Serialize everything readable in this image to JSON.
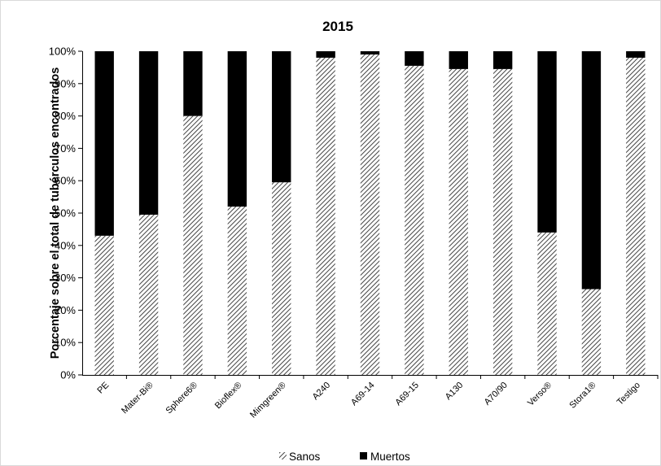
{
  "chart_data": {
    "type": "bar",
    "stacked": true,
    "title": "2015",
    "xlabel": "",
    "ylabel": "Porcentaje sobre el total de tubérculos  encontrados",
    "ylim": [
      0,
      100
    ],
    "y_ticks": [
      "0%",
      "10%",
      "20%",
      "30%",
      "40%",
      "50%",
      "60%",
      "70%",
      "80%",
      "90%",
      "100%"
    ],
    "categories": [
      "PE",
      "Mater-Bi®",
      "Sphere6®",
      "Bioflex®",
      "Mimgreen®",
      "A240",
      "A69-14",
      "A69-15",
      "A130",
      "A70/90",
      "Verso®",
      "Stora1®",
      "Testigo"
    ],
    "series": [
      {
        "name": "Sanos",
        "values": [
          43,
          49.5,
          80,
          52,
          59.5,
          98,
          99,
          95.5,
          94.5,
          94.5,
          44,
          26.5,
          98
        ],
        "pattern": "diagonal-hatch",
        "color": "#000000"
      },
      {
        "name": "Muertos",
        "values": [
          57,
          50.5,
          20,
          48,
          40.5,
          2,
          1,
          4.5,
          5.5,
          5.5,
          56,
          73.5,
          2
        ],
        "color": "#000000"
      }
    ],
    "grid": false,
    "legend_position": "bottom"
  }
}
